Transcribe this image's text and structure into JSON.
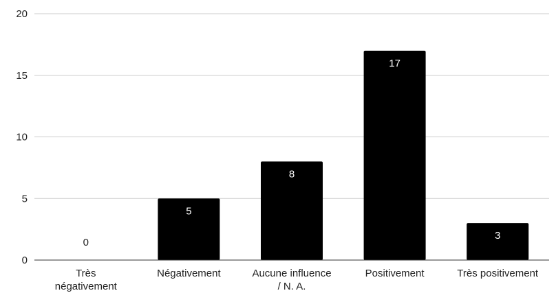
{
  "chart_data": {
    "type": "bar",
    "categories": [
      [
        "Très",
        "négativement"
      ],
      [
        "Négativement"
      ],
      [
        "Aucune influence",
        "/ N. A."
      ],
      [
        "Positivement"
      ],
      [
        "Très positivement"
      ]
    ],
    "values": [
      0,
      5,
      8,
      17,
      3
    ],
    "data_labels": [
      "0",
      "5",
      "8",
      "17",
      "3"
    ],
    "title": "",
    "xlabel": "",
    "ylabel": "",
    "ylim": [
      0,
      20
    ],
    "yticks": [
      0,
      5,
      10,
      15,
      20
    ],
    "ytick_labels": [
      "0",
      "5",
      "10",
      "15",
      "20"
    ],
    "grid": true,
    "legend": "none",
    "colors": {
      "bar": "#000000",
      "label_on_bar": "#ffffff",
      "label_above": "#222222",
      "grid": "#cccccc"
    }
  }
}
